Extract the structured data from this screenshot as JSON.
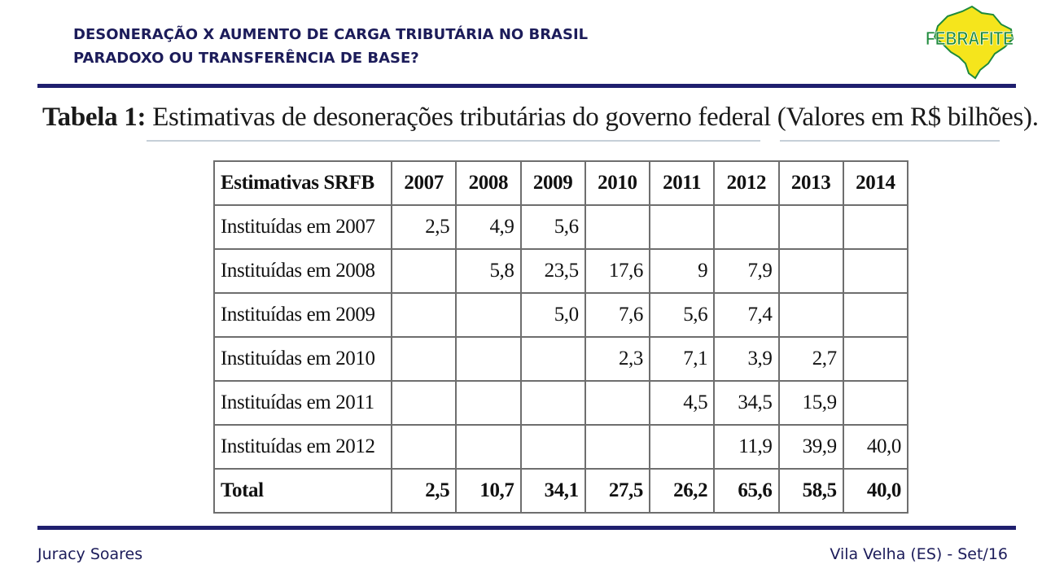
{
  "header": {
    "title_line1": "DESONERAÇÃO X AUMENTO DE CARGA TRIBUTÁRIA NO BRASIL",
    "title_line2": "PARADOXO OU TRANSFERÊNCIA DE BASE?",
    "logo_text": "FEBRAFITE"
  },
  "caption": {
    "label": "Tabela 1:",
    "text": "Estimativas de desonerações tributárias do governo federal (Valores em R$ bilhões)."
  },
  "table": {
    "columns": [
      "Estimativas SRFB",
      "2007",
      "2008",
      "2009",
      "2010",
      "2011",
      "2012",
      "2013",
      "2014"
    ],
    "rows": [
      [
        "Instituídas em 2007",
        "2,5",
        "4,9",
        "5,6",
        "",
        "",
        "",
        "",
        ""
      ],
      [
        "Instituídas em 2008",
        "",
        "5,8",
        "23,5",
        "17,6",
        "9",
        "7,9",
        "",
        ""
      ],
      [
        "Instituídas em 2009",
        "",
        "",
        "5,0",
        "7,6",
        "5,6",
        "7,4",
        "",
        ""
      ],
      [
        "Instituídas em 2010",
        "",
        "",
        "",
        "2,3",
        "7,1",
        "3,9",
        "2,7",
        ""
      ],
      [
        "Instituídas em 2011",
        "",
        "",
        "",
        "",
        "4,5",
        "34,5",
        "15,9",
        ""
      ],
      [
        "Instituídas em 2012",
        "",
        "",
        "",
        "",
        "",
        "11,9",
        "39,9",
        "40,0"
      ]
    ],
    "total": [
      "Total",
      "2,5",
      "10,7",
      "34,1",
      "27,5",
      "26,2",
      "65,6",
      "58,5",
      "40,0"
    ]
  },
  "footer": {
    "author": "Juracy Soares",
    "location_date": "Vila Velha (ES) - Set/16"
  },
  "colors": {
    "accent": "#1f1f6e",
    "logo_green": "#1e8a3c",
    "logo_yellow": "#f5e51c"
  }
}
